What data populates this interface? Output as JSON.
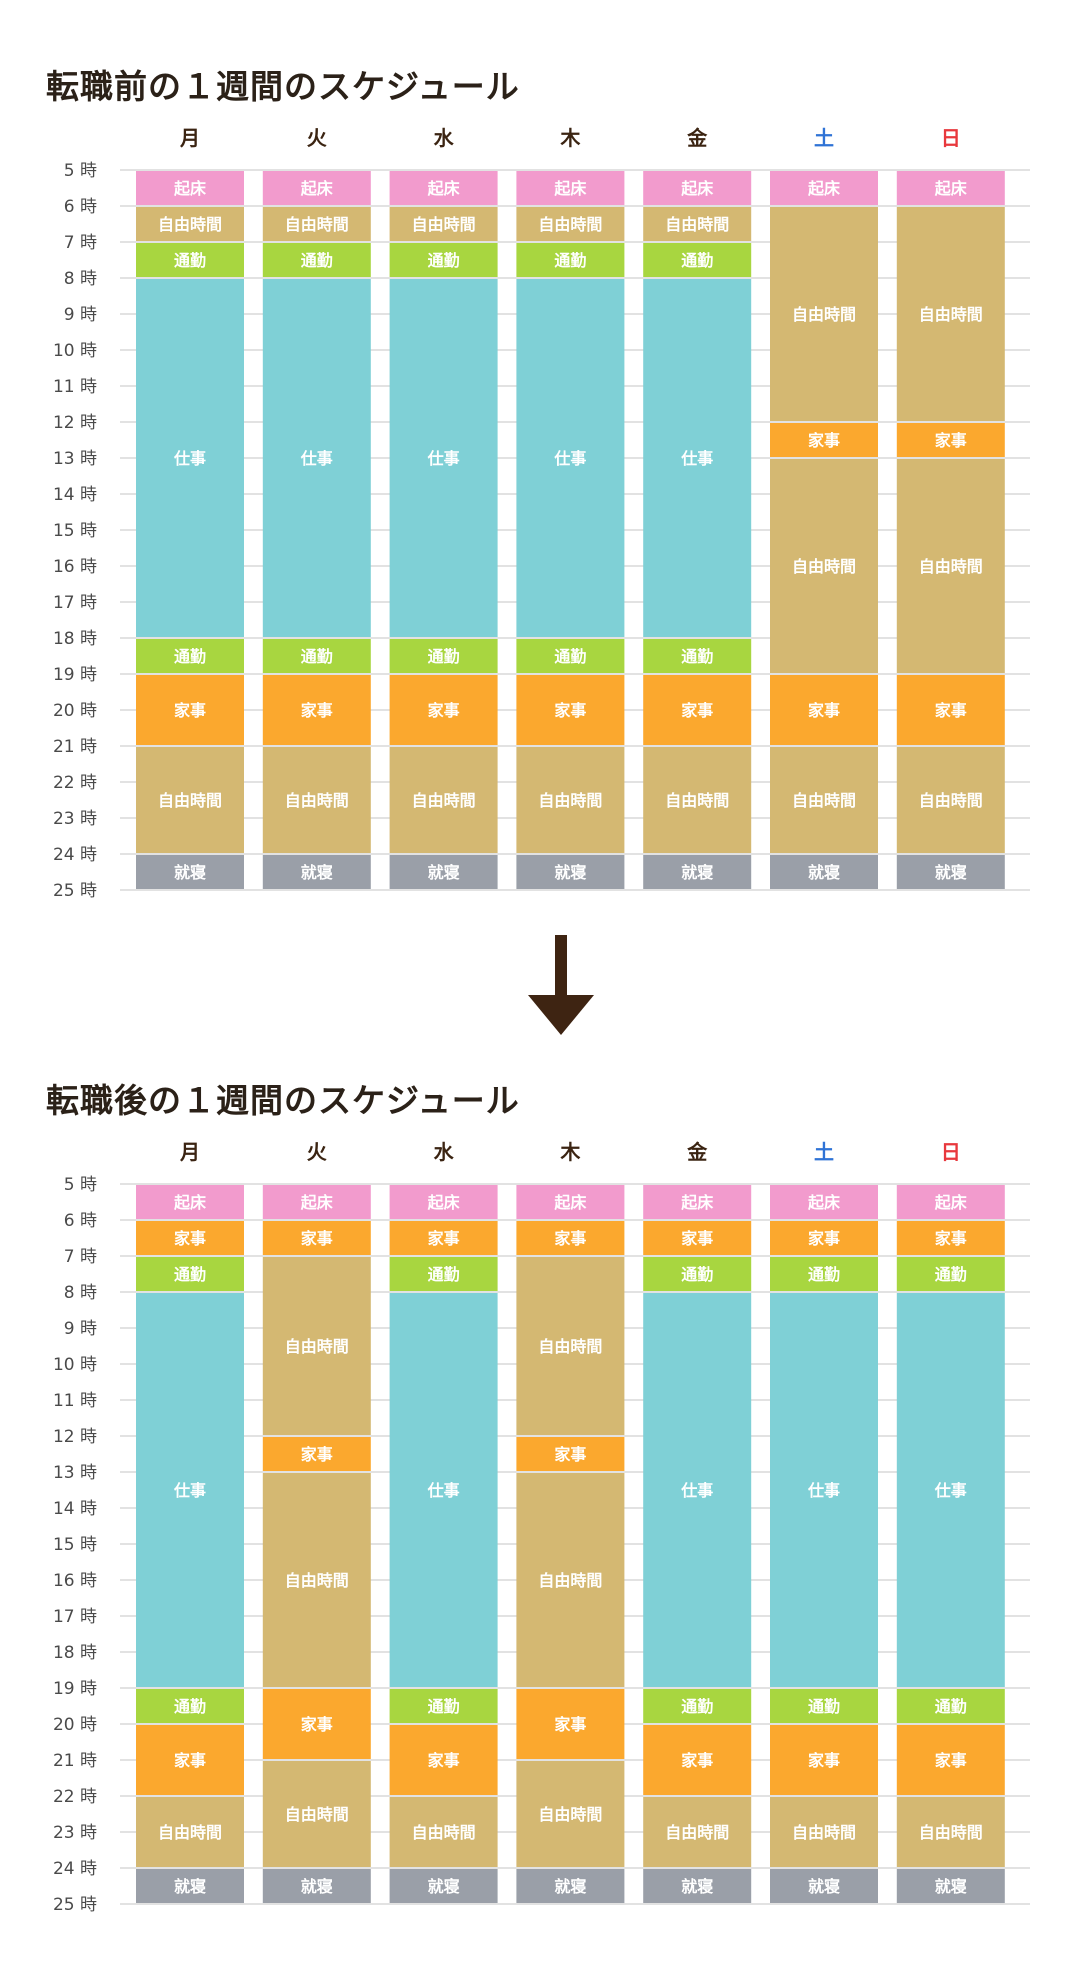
{
  "colors": {
    "起床": "#f29bcd",
    "自由時間": "#d4b872",
    "通勤": "#a8d640",
    "仕事": "#7fd0d6",
    "家事": "#fba82e",
    "就寝": "#9a9fa8",
    "weekday_text": "#3b2412",
    "saturday_text": "#2f73d6",
    "sunday_text": "#e8383d",
    "grid": "#d8d8d8",
    "arrow": "#3e2412"
  },
  "arrow_icon": "down-arrow-icon",
  "chart_data": [
    {
      "type": "table",
      "title": "転職前の１週間のスケジュール",
      "y_labels": [
        "5 時",
        "6 時",
        "7 時",
        "8 時",
        "9 時",
        "10 時",
        "11 時",
        "12 時",
        "13 時",
        "14 時",
        "15 時",
        "16 時",
        "17 時",
        "18 時",
        "19 時",
        "20 時",
        "21 時",
        "22 時",
        "23 時",
        "24 時",
        "25 時"
      ],
      "y_range": [
        5,
        25
      ],
      "days": [
        {
          "label": "月",
          "blocks": [
            {
              "label": "起床",
              "start": 5,
              "end": 6
            },
            {
              "label": "自由時間",
              "start": 6,
              "end": 7
            },
            {
              "label": "通勤",
              "start": 7,
              "end": 8
            },
            {
              "label": "仕事",
              "start": 8,
              "end": 18
            },
            {
              "label": "通勤",
              "start": 18,
              "end": 19
            },
            {
              "label": "家事",
              "start": 19,
              "end": 21
            },
            {
              "label": "自由時間",
              "start": 21,
              "end": 24
            },
            {
              "label": "就寝",
              "start": 24,
              "end": 25
            }
          ]
        },
        {
          "label": "火",
          "blocks": [
            {
              "label": "起床",
              "start": 5,
              "end": 6
            },
            {
              "label": "自由時間",
              "start": 6,
              "end": 7
            },
            {
              "label": "通勤",
              "start": 7,
              "end": 8
            },
            {
              "label": "仕事",
              "start": 8,
              "end": 18
            },
            {
              "label": "通勤",
              "start": 18,
              "end": 19
            },
            {
              "label": "家事",
              "start": 19,
              "end": 21
            },
            {
              "label": "自由時間",
              "start": 21,
              "end": 24
            },
            {
              "label": "就寝",
              "start": 24,
              "end": 25
            }
          ]
        },
        {
          "label": "水",
          "blocks": [
            {
              "label": "起床",
              "start": 5,
              "end": 6
            },
            {
              "label": "自由時間",
              "start": 6,
              "end": 7
            },
            {
              "label": "通勤",
              "start": 7,
              "end": 8
            },
            {
              "label": "仕事",
              "start": 8,
              "end": 18
            },
            {
              "label": "通勤",
              "start": 18,
              "end": 19
            },
            {
              "label": "家事",
              "start": 19,
              "end": 21
            },
            {
              "label": "自由時間",
              "start": 21,
              "end": 24
            },
            {
              "label": "就寝",
              "start": 24,
              "end": 25
            }
          ]
        },
        {
          "label": "木",
          "blocks": [
            {
              "label": "起床",
              "start": 5,
              "end": 6
            },
            {
              "label": "自由時間",
              "start": 6,
              "end": 7
            },
            {
              "label": "通勤",
              "start": 7,
              "end": 8
            },
            {
              "label": "仕事",
              "start": 8,
              "end": 18
            },
            {
              "label": "通勤",
              "start": 18,
              "end": 19
            },
            {
              "label": "家事",
              "start": 19,
              "end": 21
            },
            {
              "label": "自由時間",
              "start": 21,
              "end": 24
            },
            {
              "label": "就寝",
              "start": 24,
              "end": 25
            }
          ]
        },
        {
          "label": "金",
          "blocks": [
            {
              "label": "起床",
              "start": 5,
              "end": 6
            },
            {
              "label": "自由時間",
              "start": 6,
              "end": 7
            },
            {
              "label": "通勤",
              "start": 7,
              "end": 8
            },
            {
              "label": "仕事",
              "start": 8,
              "end": 18
            },
            {
              "label": "通勤",
              "start": 18,
              "end": 19
            },
            {
              "label": "家事",
              "start": 19,
              "end": 21
            },
            {
              "label": "自由時間",
              "start": 21,
              "end": 24
            },
            {
              "label": "就寝",
              "start": 24,
              "end": 25
            }
          ]
        },
        {
          "label": "土",
          "color": "saturday_text",
          "blocks": [
            {
              "label": "起床",
              "start": 5,
              "end": 6
            },
            {
              "label": "自由時間",
              "start": 6,
              "end": 12
            },
            {
              "label": "家事",
              "start": 12,
              "end": 13
            },
            {
              "label": "自由時間",
              "start": 13,
              "end": 19
            },
            {
              "label": "家事",
              "start": 19,
              "end": 21
            },
            {
              "label": "自由時間",
              "start": 21,
              "end": 24
            },
            {
              "label": "就寝",
              "start": 24,
              "end": 25
            }
          ]
        },
        {
          "label": "日",
          "color": "sunday_text",
          "blocks": [
            {
              "label": "起床",
              "start": 5,
              "end": 6
            },
            {
              "label": "自由時間",
              "start": 6,
              "end": 12
            },
            {
              "label": "家事",
              "start": 12,
              "end": 13
            },
            {
              "label": "自由時間",
              "start": 13,
              "end": 19
            },
            {
              "label": "家事",
              "start": 19,
              "end": 21
            },
            {
              "label": "自由時間",
              "start": 21,
              "end": 24
            },
            {
              "label": "就寝",
              "start": 24,
              "end": 25
            }
          ]
        }
      ]
    },
    {
      "type": "table",
      "title": "転職後の１週間のスケジュール",
      "y_labels": [
        "5 時",
        "6 時",
        "7 時",
        "8 時",
        "9 時",
        "10 時",
        "11 時",
        "12 時",
        "13 時",
        "14 時",
        "15 時",
        "16 時",
        "17 時",
        "18 時",
        "19 時",
        "20 時",
        "21 時",
        "22 時",
        "23 時",
        "24 時",
        "25 時"
      ],
      "y_range": [
        5,
        25
      ],
      "days": [
        {
          "label": "月",
          "blocks": [
            {
              "label": "起床",
              "start": 5,
              "end": 6
            },
            {
              "label": "家事",
              "start": 6,
              "end": 7
            },
            {
              "label": "通勤",
              "start": 7,
              "end": 8
            },
            {
              "label": "仕事",
              "start": 8,
              "end": 19
            },
            {
              "label": "通勤",
              "start": 19,
              "end": 20
            },
            {
              "label": "家事",
              "start": 20,
              "end": 22
            },
            {
              "label": "自由時間",
              "start": 22,
              "end": 24
            },
            {
              "label": "就寝",
              "start": 24,
              "end": 25
            }
          ]
        },
        {
          "label": "火",
          "blocks": [
            {
              "label": "起床",
              "start": 5,
              "end": 6
            },
            {
              "label": "家事",
              "start": 6,
              "end": 7
            },
            {
              "label": "自由時間",
              "start": 7,
              "end": 12
            },
            {
              "label": "家事",
              "start": 12,
              "end": 13
            },
            {
              "label": "自由時間",
              "start": 13,
              "end": 19
            },
            {
              "label": "家事",
              "start": 19,
              "end": 21
            },
            {
              "label": "自由時間",
              "start": 21,
              "end": 24
            },
            {
              "label": "就寝",
              "start": 24,
              "end": 25
            }
          ]
        },
        {
          "label": "水",
          "blocks": [
            {
              "label": "起床",
              "start": 5,
              "end": 6
            },
            {
              "label": "家事",
              "start": 6,
              "end": 7
            },
            {
              "label": "通勤",
              "start": 7,
              "end": 8
            },
            {
              "label": "仕事",
              "start": 8,
              "end": 19
            },
            {
              "label": "通勤",
              "start": 19,
              "end": 20
            },
            {
              "label": "家事",
              "start": 20,
              "end": 22
            },
            {
              "label": "自由時間",
              "start": 22,
              "end": 24
            },
            {
              "label": "就寝",
              "start": 24,
              "end": 25
            }
          ]
        },
        {
          "label": "木",
          "blocks": [
            {
              "label": "起床",
              "start": 5,
              "end": 6
            },
            {
              "label": "家事",
              "start": 6,
              "end": 7
            },
            {
              "label": "自由時間",
              "start": 7,
              "end": 12
            },
            {
              "label": "家事",
              "start": 12,
              "end": 13
            },
            {
              "label": "自由時間",
              "start": 13,
              "end": 19
            },
            {
              "label": "家事",
              "start": 19,
              "end": 21
            },
            {
              "label": "自由時間",
              "start": 21,
              "end": 24
            },
            {
              "label": "就寝",
              "start": 24,
              "end": 25
            }
          ]
        },
        {
          "label": "金",
          "blocks": [
            {
              "label": "起床",
              "start": 5,
              "end": 6
            },
            {
              "label": "家事",
              "start": 6,
              "end": 7
            },
            {
              "label": "通勤",
              "start": 7,
              "end": 8
            },
            {
              "label": "仕事",
              "start": 8,
              "end": 19
            },
            {
              "label": "通勤",
              "start": 19,
              "end": 20
            },
            {
              "label": "家事",
              "start": 20,
              "end": 22
            },
            {
              "label": "自由時間",
              "start": 22,
              "end": 24
            },
            {
              "label": "就寝",
              "start": 24,
              "end": 25
            }
          ]
        },
        {
          "label": "土",
          "color": "saturday_text",
          "blocks": [
            {
              "label": "起床",
              "start": 5,
              "end": 6
            },
            {
              "label": "家事",
              "start": 6,
              "end": 7
            },
            {
              "label": "通勤",
              "start": 7,
              "end": 8
            },
            {
              "label": "仕事",
              "start": 8,
              "end": 19
            },
            {
              "label": "通勤",
              "start": 19,
              "end": 20
            },
            {
              "label": "家事",
              "start": 20,
              "end": 22
            },
            {
              "label": "自由時間",
              "start": 22,
              "end": 24
            },
            {
              "label": "就寝",
              "start": 24,
              "end": 25
            }
          ]
        },
        {
          "label": "日",
          "color": "sunday_text",
          "blocks": [
            {
              "label": "起床",
              "start": 5,
              "end": 6
            },
            {
              "label": "家事",
              "start": 6,
              "end": 7
            },
            {
              "label": "通勤",
              "start": 7,
              "end": 8
            },
            {
              "label": "仕事",
              "start": 8,
              "end": 19
            },
            {
              "label": "通勤",
              "start": 19,
              "end": 20
            },
            {
              "label": "家事",
              "start": 20,
              "end": 22
            },
            {
              "label": "自由時間",
              "start": 22,
              "end": 24
            },
            {
              "label": "就寝",
              "start": 24,
              "end": 25
            }
          ]
        }
      ]
    }
  ]
}
